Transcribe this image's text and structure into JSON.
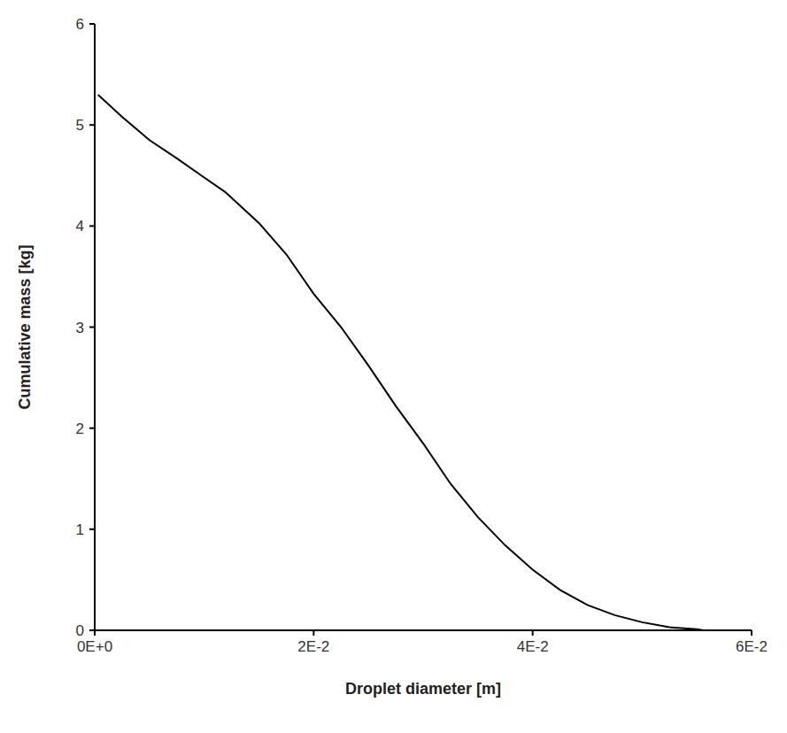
{
  "chart_data": {
    "type": "line",
    "x_label": "Droplet diameter [m]",
    "y_label": "Cumulative mass [kg]",
    "x": [
      0.0003,
      0.0025,
      0.005,
      0.0075,
      0.01,
      0.012,
      0.015,
      0.0175,
      0.02,
      0.0225,
      0.025,
      0.0275,
      0.03,
      0.0325,
      0.035,
      0.0375,
      0.04,
      0.0425,
      0.045,
      0.0475,
      0.05,
      0.0525,
      0.055,
      0.0556
    ],
    "values": [
      5.3,
      5.08,
      4.85,
      4.67,
      4.48,
      4.33,
      4.03,
      3.72,
      3.33,
      3.0,
      2.62,
      2.22,
      1.85,
      1.45,
      1.12,
      0.84,
      0.6,
      0.4,
      0.25,
      0.15,
      0.08,
      0.03,
      0.01,
      0.0
    ],
    "color": "#000000",
    "xlim": [
      0,
      0.06
    ],
    "xticks": [
      {
        "value": 0,
        "label": "0E+0"
      },
      {
        "value": 0.02,
        "label": "2E-2"
      },
      {
        "value": 0.04,
        "label": "4E-2"
      },
      {
        "value": 0.06,
        "label": "6E-2"
      }
    ],
    "ylim": [
      0,
      6
    ],
    "yticks": [
      0,
      1,
      2,
      3,
      4,
      5,
      6
    ],
    "grid": false
  }
}
